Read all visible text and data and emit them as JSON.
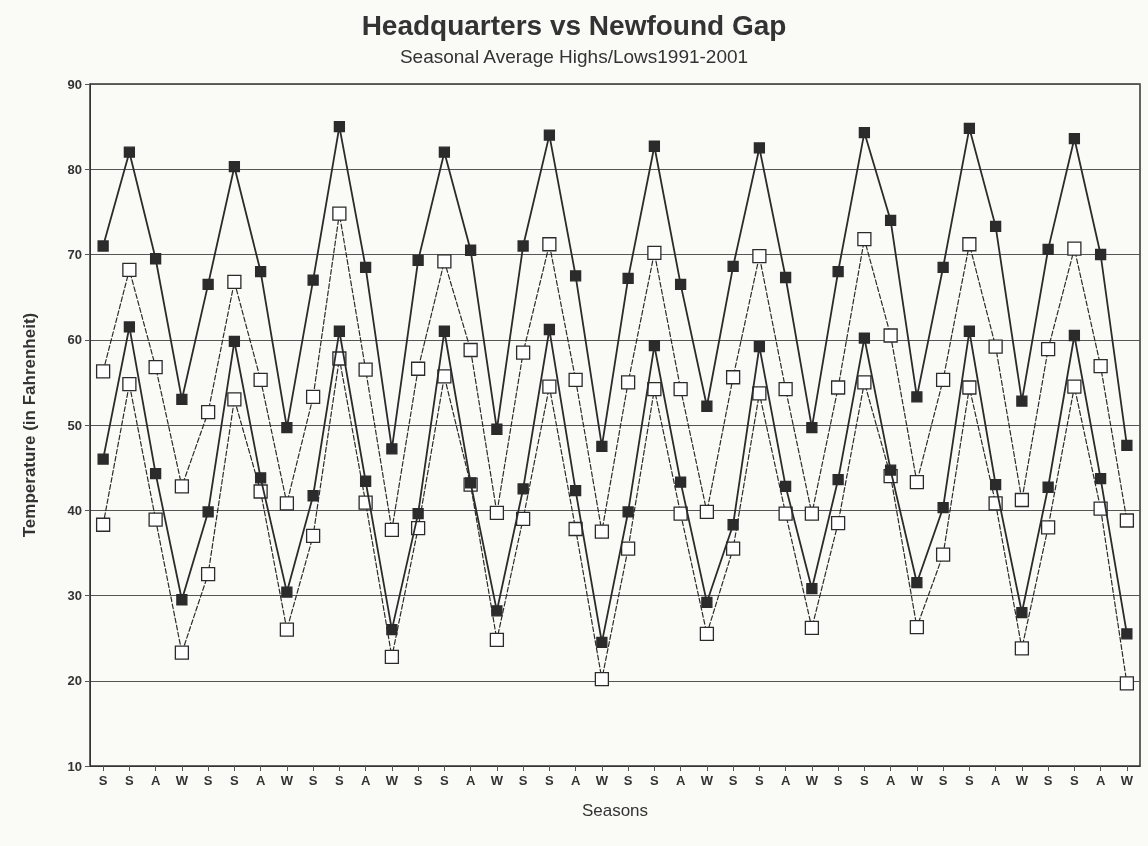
{
  "chart_data": {
    "type": "line",
    "title": "Headquarters vs Newfound Gap",
    "subtitle": "Seasonal Average Highs/Lows1991-2001",
    "xlabel": "Seasons",
    "ylabel": "Temperature (in Fahrenheit)",
    "categories": [
      "S",
      "S",
      "A",
      "W",
      "S",
      "S",
      "A",
      "W",
      "S",
      "S",
      "A",
      "W",
      "S",
      "S",
      "A",
      "W",
      "S",
      "S",
      "A",
      "W",
      "S",
      "S",
      "A",
      "W",
      "S",
      "S",
      "A",
      "W",
      "S",
      "S",
      "A",
      "W",
      "S",
      "S",
      "A",
      "W",
      "S",
      "S",
      "A",
      "W"
    ],
    "ylim": [
      10,
      90
    ],
    "yticks": [
      10,
      20,
      30,
      40,
      50,
      60,
      70,
      80,
      90
    ],
    "grid": "y",
    "marker": "square",
    "series": [
      {
        "color": "#2b2b2b",
        "line_style": "solid",
        "values": [
          71,
          82,
          69.5,
          53,
          66.5,
          80.3,
          68,
          49.7,
          67,
          85,
          68.5,
          47.2,
          69.3,
          82,
          70.5,
          49.5,
          71,
          84,
          67.5,
          47.5,
          67.2,
          82.7,
          66.5,
          52.2,
          68.6,
          82.5,
          67.3,
          49.7,
          68,
          84.3,
          74,
          53.3,
          68.5,
          84.8,
          73.3,
          52.8,
          70.6,
          83.6,
          70,
          47.6
        ]
      },
      {
        "color": "#2b2b2b",
        "line_style": "solid",
        "values": [
          46,
          61.5,
          44.3,
          29.5,
          39.8,
          59.8,
          43.8,
          30.4,
          41.7,
          61,
          43.4,
          26,
          39.6,
          61,
          43.2,
          28.2,
          42.5,
          61.2,
          42.3,
          24.5,
          39.8,
          59.3,
          43.3,
          29.2,
          38.3,
          59.2,
          42.8,
          30.8,
          43.6,
          60.2,
          44.7,
          31.5,
          40.3,
          61,
          43,
          28,
          42.7,
          60.5,
          43.7,
          25.5
        ]
      },
      {
        "color": "#2b2b2b",
        "line_style": "dashed",
        "values": [
          56.3,
          68.2,
          56.8,
          42.8,
          51.5,
          66.8,
          55.3,
          40.8,
          53.3,
          74.8,
          56.5,
          37.7,
          56.6,
          69.2,
          58.8,
          39.7,
          58.5,
          71.2,
          55.3,
          37.5,
          55,
          70.2,
          54.2,
          39.8,
          55.6,
          69.8,
          54.2,
          39.6,
          54.4,
          71.8,
          60.5,
          43.3,
          55.3,
          71.2,
          59.2,
          41.2,
          58.9,
          70.7,
          56.9,
          38.8
        ]
      },
      {
        "color": "#2b2b2b",
        "line_style": "dashed",
        "values": [
          38.3,
          54.8,
          38.9,
          23.3,
          32.5,
          53,
          42.2,
          26,
          37,
          57.8,
          40.9,
          22.8,
          37.9,
          55.7,
          43,
          24.8,
          39,
          54.5,
          37.8,
          20.2,
          35.5,
          54.2,
          39.6,
          25.5,
          35.5,
          53.7,
          39.6,
          26.2,
          38.5,
          55,
          44,
          26.3,
          34.8,
          54.4,
          40.8,
          23.8,
          38,
          54.5,
          40.2,
          19.7
        ]
      }
    ]
  }
}
